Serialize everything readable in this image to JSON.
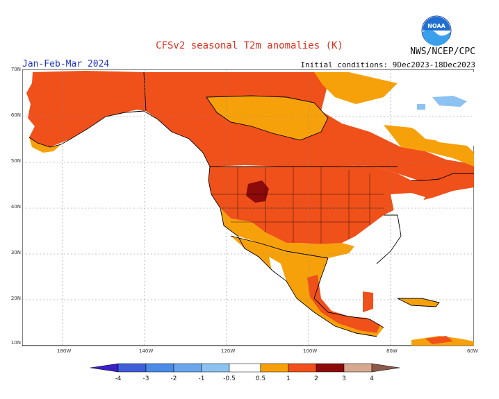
{
  "title": "CFSv2 seasonal T2m anomalies (K)",
  "agency": "NWS/NCEP/CPC",
  "season": "Jan-Feb-Mar 2024",
  "initial_conditions": "Initial conditions: 9Dec2023-18Dec2023",
  "logo_text": "NOAA",
  "lat_labels": [
    "70N",
    "60N",
    "50N",
    "40N",
    "30N",
    "20N",
    "10N"
  ],
  "lon_labels": [
    "180W",
    "140W",
    "120W",
    "100W",
    "80W",
    "60W"
  ],
  "colorbar": {
    "labels": [
      "-4",
      "-3",
      "-2",
      "-1",
      "-0.5",
      "0.5",
      "1",
      "2",
      "3",
      "4"
    ],
    "colors": [
      "#3b1fc8",
      "#3f5fd8",
      "#4a8be8",
      "#8cc2f2",
      "#ffffff",
      "#f7a10a",
      "#f0501a",
      "#8c0a0a",
      "#d8a890"
    ]
  },
  "anomaly_colors": {
    "ice_ocean": "#ffffff",
    "c05": "#f7a10a",
    "c1": "#f0501a",
    "c2": "#8c0a0a",
    "neg1": "#8cc2f2"
  }
}
